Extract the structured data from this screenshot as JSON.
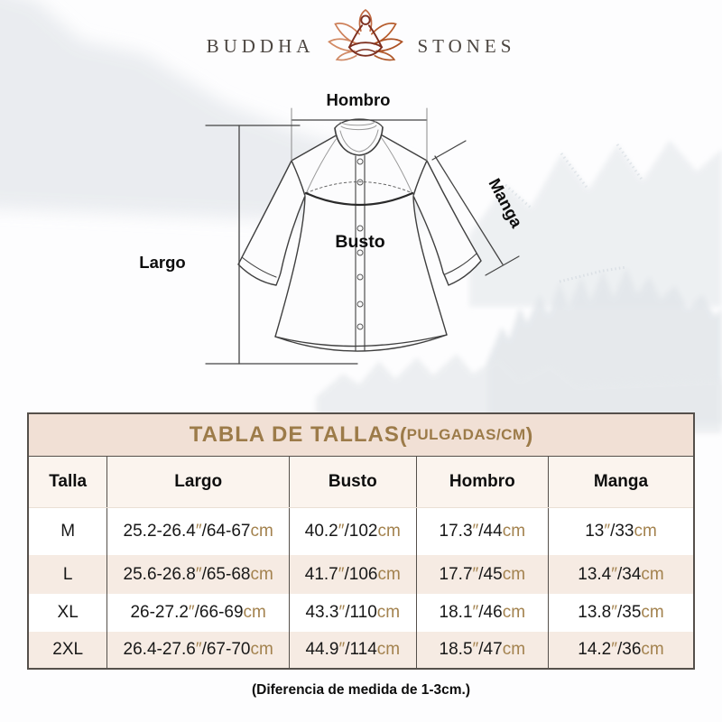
{
  "brand": {
    "word_left": "BUDDHA",
    "word_right": "STONES"
  },
  "diagram": {
    "labels": {
      "hombro": "Hombro",
      "manga": "Manga",
      "busto": "Busto",
      "largo": "Largo"
    }
  },
  "size_table": {
    "title": "TABLA DE TALLAS",
    "paren_open": "(",
    "units": "PULGADAS/CM",
    "paren_close": ")",
    "headers": [
      "Talla",
      "Largo",
      "Busto",
      "Hombro",
      "Manga"
    ],
    "rows": [
      {
        "size": "M",
        "largo": "25.2-26.4″/64-67cm",
        "busto": "40.2″/102cm",
        "hombro": "17.3″/44cm",
        "manga": "13″/33cm"
      },
      {
        "size": "L",
        "largo": "25.6-26.8″/65-68cm",
        "busto": "41.7″/106cm",
        "hombro": "17.7″/45cm",
        "manga": "13.4″/34cm"
      },
      {
        "size": "XL",
        "largo": "26-27.2″/66-69cm",
        "busto": "43.3″/110cm",
        "hombro": "18.1″/46cm",
        "manga": "13.8″/35cm"
      },
      {
        "size": "2XL",
        "largo": "26.4-27.6″/67-70cm",
        "busto": "44.9″/114cm",
        "hombro": "18.5″/47cm",
        "manga": "14.2″/36cm"
      }
    ],
    "colors": {
      "accent_gold": "#9c7b49",
      "unit_gold": "#a3824e",
      "band_bg": "#f1e0d5",
      "alt_row_bg": "#f6ebe3"
    }
  },
  "footer": {
    "note": "(Diferencia de medida de 1-3cm.)"
  }
}
